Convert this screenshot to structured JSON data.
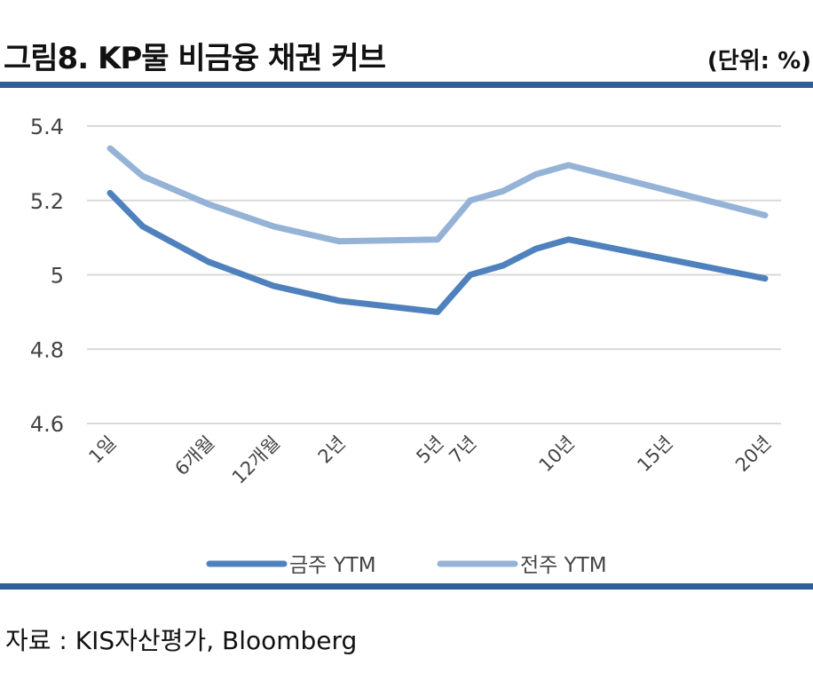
{
  "header": {
    "title": "그림8. KP물 비금융 채권 커브",
    "unit": "(단위: %)"
  },
  "footer": {
    "source": "자료 : KIS자산평가, Bloomberg"
  },
  "chart_data": {
    "type": "line",
    "title": "그림8. KP물 비금융 채권 커브",
    "xlabel": "",
    "ylabel": "",
    "ylim": [
      4.6,
      5.4
    ],
    "yticks": [
      "5.4",
      "5.2",
      "5",
      "4.8",
      "4.6"
    ],
    "x_positions": [
      0,
      1,
      2,
      3,
      4,
      5,
      6,
      7,
      8,
      9,
      10,
      11,
      12,
      13,
      14,
      15
    ],
    "x_tick_labels": [
      {
        "index": 0,
        "label": "1일"
      },
      {
        "index": 3,
        "label": "6개월"
      },
      {
        "index": 5,
        "label": "12개월"
      },
      {
        "index": 7,
        "label": "2년"
      },
      {
        "index": 10,
        "label": "5년"
      },
      {
        "index": 11,
        "label": "7년"
      },
      {
        "index": 14,
        "label": "10년"
      },
      {
        "index": 17,
        "label": "15년"
      },
      {
        "index": 20,
        "label": "20년"
      }
    ],
    "grid": true,
    "legend_position": "bottom",
    "series": [
      {
        "name": "금주 YTM",
        "color": "#4f81bd",
        "points": [
          [
            0,
            5.22
          ],
          [
            1,
            5.13
          ],
          [
            3,
            5.035
          ],
          [
            5,
            4.97
          ],
          [
            7,
            4.93
          ],
          [
            10,
            4.9
          ],
          [
            11,
            5.0
          ],
          [
            12,
            5.025
          ],
          [
            13,
            5.07
          ],
          [
            14,
            5.095
          ],
          [
            20,
            4.99
          ]
        ]
      },
      {
        "name": "전주 YTM",
        "color": "#95b3d7",
        "points": [
          [
            0,
            5.34
          ],
          [
            1,
            5.265
          ],
          [
            3,
            5.19
          ],
          [
            5,
            5.13
          ],
          [
            7,
            5.09
          ],
          [
            10,
            5.095
          ],
          [
            11,
            5.2
          ],
          [
            12,
            5.225
          ],
          [
            13,
            5.27
          ],
          [
            14,
            5.295
          ],
          [
            20,
            5.16
          ]
        ]
      }
    ]
  }
}
